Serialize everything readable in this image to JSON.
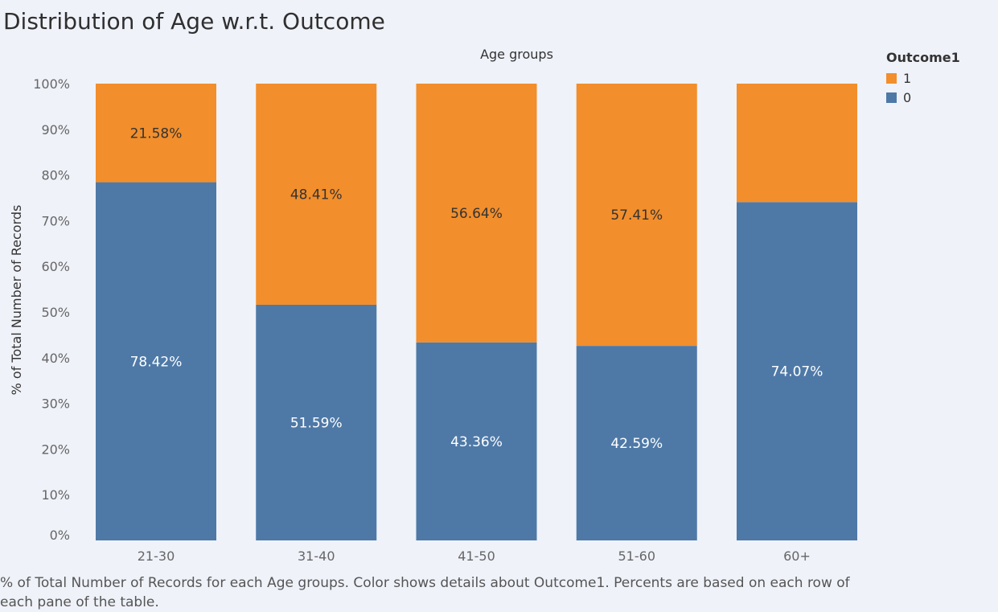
{
  "chart_data": {
    "type": "bar",
    "stacked": true,
    "title": "Distribution of Age w.r.t. Outcome",
    "xlabel": "Age groups",
    "ylabel": "% of Total Number of Records",
    "categories": [
      "21-30",
      "31-40",
      "41-50",
      "51-60",
      "60+"
    ],
    "series": [
      {
        "name": "0",
        "color": "#4e79a7",
        "values": [
          78.42,
          51.59,
          43.36,
          42.59,
          74.07
        ],
        "labels": [
          "78.42%",
          "51.59%",
          "43.36%",
          "42.59%",
          "74.07%"
        ]
      },
      {
        "name": "1",
        "color": "#f28e2b",
        "values": [
          21.58,
          48.41,
          56.64,
          57.41,
          25.93
        ],
        "labels": [
          "21.58%",
          "48.41%",
          "56.64%",
          "57.41%",
          ""
        ]
      }
    ],
    "yticks": [
      "0%",
      "10%",
      "20%",
      "30%",
      "40%",
      "50%",
      "60%",
      "70%",
      "80%",
      "90%",
      "100%"
    ],
    "ylim": [
      0,
      100
    ],
    "grid": false,
    "legend": {
      "title": "Outcome1",
      "position": "top-right",
      "items": [
        {
          "label": "1",
          "color": "#f28e2b"
        },
        {
          "label": "0",
          "color": "#4e79a7"
        }
      ]
    },
    "caption": "% of Total Number of Records for each Age groups.  Color shows details about Outcome1. Percents are based on each row of each pane of the table."
  }
}
